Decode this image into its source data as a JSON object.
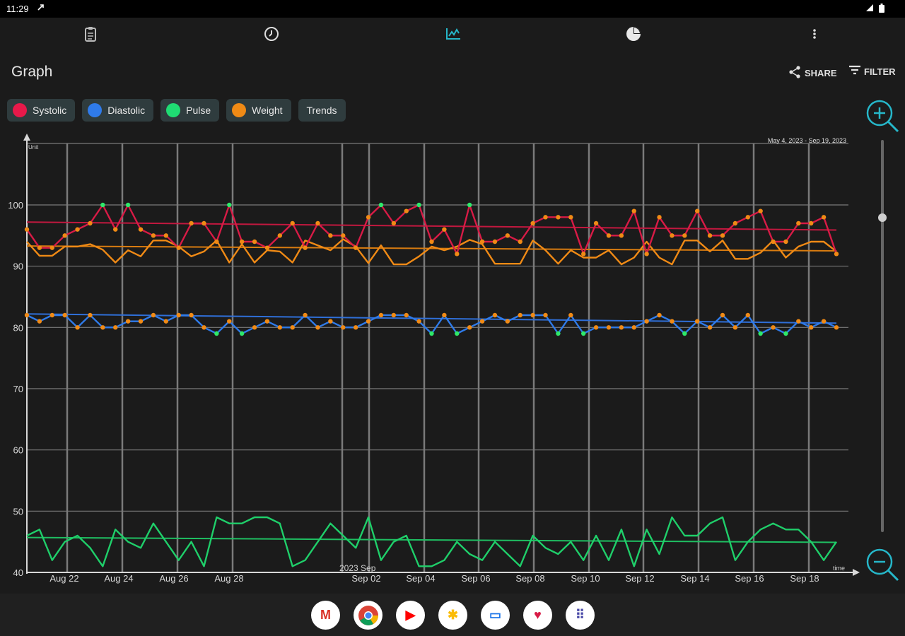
{
  "status_bar": {
    "time": "11:29"
  },
  "toolbar": {
    "tabs": [
      "clipboard-icon",
      "history-icon",
      "graph-icon",
      "pie-chart-icon",
      "more-vert-icon"
    ]
  },
  "header": {
    "title": "Graph",
    "share_label": "SHARE",
    "filter_label": "FILTER"
  },
  "legend": [
    {
      "label": "Systolic",
      "color": "#e8194a"
    },
    {
      "label": "Diastolic",
      "color": "#2f7bea"
    },
    {
      "label": "Pulse",
      "color": "#1fdc73"
    },
    {
      "label": "Weight",
      "color": "#f08a15"
    },
    {
      "label": "Trends",
      "color": ""
    }
  ],
  "chart_data": {
    "type": "line",
    "ylabel": "Unit",
    "xlabel": "time",
    "date_range": "May 4, 2023 - Sep 19, 2023",
    "month_label": "2023 Sep",
    "ylim": [
      40,
      100
    ],
    "y_ticks": [
      100,
      90,
      80,
      70,
      60,
      50,
      40
    ],
    "x_ticks": [
      "Aug 22",
      "Aug 24",
      "Aug 26",
      "Aug 28",
      "Sep 02",
      "Sep 04",
      "Sep 06",
      "Sep 08",
      "Sep 10",
      "Sep 12",
      "Sep 14",
      "Sep 16",
      "Sep 18"
    ],
    "grid": true,
    "series": [
      {
        "name": "Systolic",
        "color": "#d81b46",
        "values": [
          96,
          93,
          93,
          95,
          96,
          97,
          100,
          96,
          100,
          96,
          95,
          95,
          93,
          97,
          97,
          94,
          100,
          94,
          94,
          93,
          95,
          97,
          93,
          97,
          95,
          95,
          93,
          98,
          100,
          97,
          99,
          100,
          94,
          96,
          92,
          100,
          94,
          94,
          95,
          94,
          97,
          98,
          98,
          98,
          92,
          97,
          95,
          95,
          99,
          92,
          98,
          95,
          95,
          99,
          95,
          95,
          97,
          98,
          99,
          94,
          94,
          97,
          97,
          98,
          92
        ]
      },
      {
        "name": "Diastolic",
        "color": "#2f7bea",
        "values": [
          82,
          81,
          82,
          82,
          80,
          82,
          80,
          80,
          81,
          81,
          82,
          81,
          82,
          82,
          80,
          79,
          81,
          79,
          80,
          81,
          80,
          80,
          82,
          80,
          81,
          80,
          80,
          81,
          82,
          82,
          82,
          81,
          79,
          82,
          79,
          80,
          81,
          82,
          81,
          82,
          82,
          82,
          79,
          82,
          79,
          80,
          80,
          80,
          80,
          81,
          82,
          81,
          79,
          81,
          80,
          82,
          80,
          82,
          79,
          80,
          79,
          81,
          80,
          81,
          80
        ]
      },
      {
        "name": "Pulse",
        "color": "#1fcf6a",
        "values": [
          46,
          47,
          42,
          45,
          46,
          44,
          41,
          47,
          45,
          44,
          48,
          45,
          42,
          45,
          41,
          49,
          48,
          48,
          49,
          49,
          48,
          41,
          42,
          45,
          48,
          46,
          44,
          49,
          42,
          45,
          46,
          41,
          41,
          42,
          45,
          43,
          42,
          45,
          43,
          41,
          46,
          44,
          43,
          45,
          42,
          46,
          42,
          47,
          41,
          47,
          43,
          49,
          46,
          46,
          48,
          49,
          42,
          45,
          47,
          48,
          47,
          47,
          45,
          42,
          45
        ]
      },
      {
        "name": "Weight",
        "color": "#f08a15",
        "values": [
          94,
          91.7,
          91.7,
          93.2,
          93.2,
          93.6,
          92.7,
          90.6,
          92.6,
          91.6,
          94.2,
          94.2,
          93.2,
          91.6,
          92.4,
          94.2,
          90.6,
          93.6,
          90.6,
          92.6,
          92.4,
          90.6,
          94.2,
          93.4,
          92.6,
          94.4,
          93.2,
          90.5,
          93.4,
          90.3,
          90.3,
          91.6,
          93.2,
          92.6,
          93.2,
          94.3,
          93.6,
          90.4,
          90.4,
          90.4,
          94.2,
          92.6,
          90.4,
          92.6,
          91.4,
          91.4,
          92.6,
          90.3,
          91.4,
          94,
          91.4,
          90.3,
          94.2,
          94.2,
          92.4,
          94.2,
          91.2,
          91.2,
          92.2,
          94.2,
          91.4,
          93.2,
          94,
          94,
          92.4
        ]
      }
    ],
    "trends": [
      {
        "name": "Systolic trend",
        "color": "#c2183f",
        "from": 97.2,
        "to": 95.9
      },
      {
        "name": "Diastolic trend",
        "color": "#2f6fd8",
        "from": 82.2,
        "to": 80.7
      },
      {
        "name": "Pulse trend",
        "color": "#1fbf62",
        "from": 45.7,
        "to": 44.9
      },
      {
        "name": "Weight trend",
        "color": "#d97c10",
        "from": 93.3,
        "to": 92.5
      }
    ]
  },
  "dock_apps": [
    {
      "name": "gmail",
      "glyph": "M",
      "color": "#d93025"
    },
    {
      "name": "chrome",
      "glyph": "",
      "color": "#1a73e8"
    },
    {
      "name": "youtube",
      "glyph": "▶",
      "color": "#ff0000"
    },
    {
      "name": "photos",
      "glyph": "✱",
      "color": "#fbbc05"
    },
    {
      "name": "messages",
      "glyph": "▭",
      "color": "#1a73e8"
    },
    {
      "name": "health",
      "glyph": "♥",
      "color": "#d81b46"
    },
    {
      "name": "app-drawer",
      "glyph": "⠿",
      "color": "#4a4aa8"
    }
  ]
}
